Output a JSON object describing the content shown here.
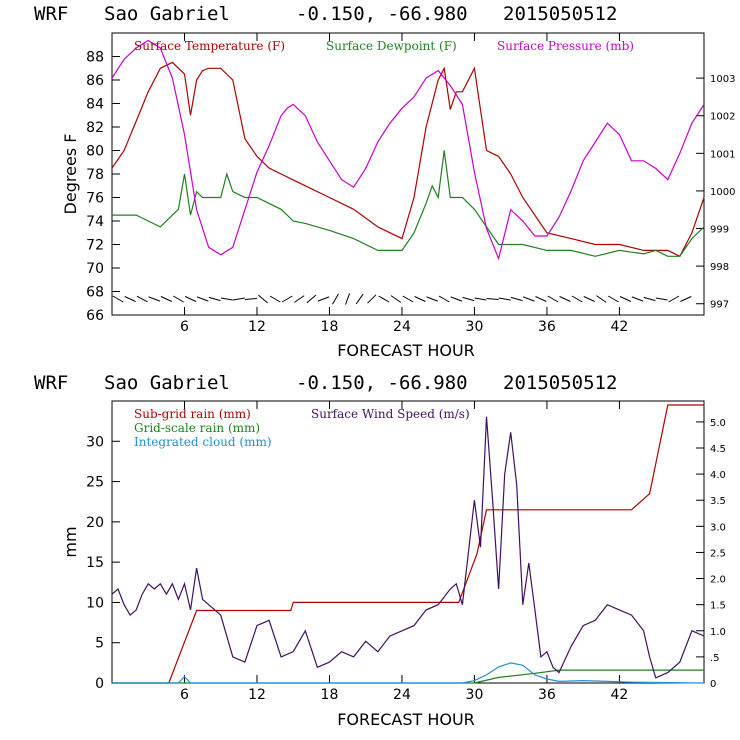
{
  "chart_data": [
    {
      "type": "line",
      "model": "WRF",
      "location": "Sao Gabriel",
      "coords": "-0.150, -66.980",
      "run": "2015050512",
      "xlabel": "FORECAST HOUR",
      "ylabel": "Degrees F",
      "xlim": [
        0,
        49
      ],
      "ylim": [
        66,
        90
      ],
      "y2lim": [
        996.7,
        1004.2
      ],
      "xticks": [
        6,
        12,
        18,
        24,
        30,
        36,
        42
      ],
      "yticks": [
        66,
        68,
        70,
        72,
        74,
        76,
        78,
        80,
        82,
        84,
        86,
        88
      ],
      "y2ticks": [
        997,
        998,
        999,
        1000,
        1001,
        1002,
        1003
      ],
      "legend": [
        "Surface Temperature (F)",
        "Surface Dewpoint (F)",
        "Surface Pressure (mb)"
      ],
      "series": [
        {
          "name": "Surface Temperature (F)",
          "color": "#b00000",
          "axis": "left",
          "x": [
            0,
            1,
            2,
            3,
            4,
            5,
            6,
            6.5,
            7,
            7.5,
            8,
            9,
            10,
            11,
            12,
            13,
            14,
            15,
            16,
            18,
            20,
            22,
            24,
            25,
            26,
            27,
            27.5,
            28,
            28.5,
            29,
            30,
            31,
            32,
            33,
            34,
            36,
            38,
            40,
            42,
            44,
            45,
            46,
            47,
            48,
            49
          ],
          "y": [
            78.5,
            80,
            82.5,
            85,
            87,
            87.5,
            86.5,
            83,
            86,
            86.8,
            87,
            87,
            86,
            81,
            79.5,
            78.5,
            78,
            77.5,
            77,
            76,
            75,
            73.5,
            72.5,
            76,
            82,
            86,
            87,
            83.5,
            85,
            85,
            87,
            80,
            79.5,
            78,
            76,
            73,
            72.5,
            72,
            72,
            71.5,
            71.5,
            71.5,
            71,
            73,
            76
          ]
        },
        {
          "name": "Surface Dewpoint (F)",
          "color": "#208020",
          "axis": "left",
          "x": [
            0,
            2,
            3,
            4,
            5,
            5.5,
            6,
            6.5,
            7,
            7.5,
            8,
            9,
            9.5,
            10,
            11,
            12,
            13,
            14,
            15,
            16,
            18,
            20,
            22,
            24,
            25,
            26,
            26.5,
            27,
            27.5,
            28,
            29,
            30,
            31,
            32,
            33,
            34,
            36,
            38,
            40,
            42,
            44,
            45,
            46,
            47,
            48,
            49
          ],
          "y": [
            74.5,
            74.5,
            74,
            73.5,
            74.5,
            75,
            78,
            74.5,
            76.5,
            76,
            76,
            76,
            78,
            76.5,
            76,
            76,
            75.5,
            75,
            74,
            73.8,
            73.2,
            72.5,
            71.5,
            71.5,
            73,
            75.5,
            77,
            76,
            80,
            76,
            76,
            75,
            73.5,
            72,
            72,
            72,
            71.5,
            71.5,
            71,
            71.5,
            71.2,
            71.5,
            71,
            71,
            72.5,
            73.5
          ]
        },
        {
          "name": "Surface Pressure (mb)",
          "color": "#cc00cc",
          "axis": "right",
          "x": [
            0,
            1,
            2,
            3,
            4,
            5,
            6,
            7,
            8,
            9,
            10,
            11,
            12,
            13,
            14,
            14.5,
            15,
            16,
            17,
            18,
            19,
            20,
            21,
            22,
            23,
            24,
            25,
            26,
            27,
            28,
            29,
            30,
            31,
            32,
            33,
            34,
            35,
            36,
            37,
            38,
            39,
            40,
            41,
            42,
            43,
            44,
            45,
            46,
            47,
            48,
            49
          ],
          "y": [
            1003,
            1003.5,
            1003.8,
            1004,
            1003.8,
            1003,
            1001.5,
            999.5,
            998.5,
            998.3,
            998.5,
            999.5,
            1000.5,
            1001.2,
            1002,
            1002.2,
            1002.3,
            1002,
            1001.3,
            1000.8,
            1000.3,
            1000.1,
            1000.6,
            1001.3,
            1001.8,
            1002.2,
            1002.5,
            1003,
            1003.2,
            1002.8,
            1002.3,
            1000.5,
            999,
            998.2,
            999.5,
            999.2,
            998.8,
            998.8,
            999.3,
            1000,
            1000.8,
            1001.3,
            1001.8,
            1001.5,
            1000.8,
            1000.8,
            1000.6,
            1000.3,
            1001,
            1001.8,
            1002.3
          ]
        }
      ]
    },
    {
      "type": "line",
      "model": "WRF",
      "location": "Sao Gabriel",
      "coords": "-0.150, -66.980",
      "run": "2015050512",
      "xlabel": "FORECAST HOUR",
      "ylabel": "mm",
      "xlim": [
        0,
        49
      ],
      "ylim": [
        0,
        35
      ],
      "y2lim": [
        0,
        5.4
      ],
      "xticks": [
        6,
        12,
        18,
        24,
        30,
        36,
        42
      ],
      "yticks": [
        0,
        5,
        10,
        15,
        20,
        25,
        30
      ],
      "y2ticks": [
        "0",
        ".5",
        "1.0",
        "1.5",
        "2.0",
        "2.5",
        "3.0",
        "3.5",
        "4.0",
        "4.5",
        "5.0"
      ],
      "legend": [
        "Sub-grid rain (mm)",
        "Grid-scale rain (mm)",
        "Integrated cloud (mm)",
        "Surface Wind Speed (m/s)"
      ],
      "series": [
        {
          "name": "Sub-grid rain (mm)",
          "color": "#b00000",
          "axis": "left",
          "x": [
            0,
            4.7,
            7,
            14.8,
            15,
            28.7,
            30.2,
            31,
            43,
            44.5,
            46,
            49
          ],
          "y": [
            0,
            0,
            9,
            9,
            10,
            10,
            16,
            21.5,
            21.5,
            23.5,
            34.5,
            34.5
          ]
        },
        {
          "name": "Grid-scale rain (mm)",
          "color": "#208020",
          "axis": "left",
          "x": [
            0,
            30,
            32,
            35,
            37,
            49
          ],
          "y": [
            0,
            0,
            0.7,
            1.2,
            1.6,
            1.6
          ]
        },
        {
          "name": "Integrated cloud (mm)",
          "color": "#2090d0",
          "axis": "left",
          "x": [
            0,
            5.5,
            6,
            6.5,
            29,
            30,
            31,
            32,
            33,
            34,
            35,
            36,
            37,
            39,
            41,
            43,
            49
          ],
          "y": [
            0,
            0,
            0.8,
            0,
            0,
            0.3,
            1,
            2,
            2.5,
            2.2,
            1,
            0.5,
            0.2,
            0.3,
            0.2,
            0.1,
            0
          ]
        },
        {
          "name": "Surface Wind Speed (m/s)",
          "color": "#401060",
          "axis": "right",
          "x": [
            0,
            0.5,
            1,
            1.5,
            2,
            2.5,
            3,
            3.5,
            4,
            4.5,
            5,
            5.5,
            6,
            6.5,
            7,
            7.5,
            8,
            9,
            10,
            11,
            12,
            13,
            14,
            15,
            16,
            17,
            18,
            19,
            20,
            21,
            22,
            23,
            24,
            25,
            26,
            27,
            28,
            28.5,
            29,
            29.5,
            30,
            30.5,
            31,
            31.5,
            32,
            32.5,
            33,
            33.5,
            34,
            34.5,
            35,
            35.5,
            36,
            36.5,
            37,
            38,
            39,
            40,
            41,
            42,
            43,
            44,
            44.5,
            45,
            46,
            47,
            48,
            49
          ],
          "y": [
            1.7,
            1.8,
            1.5,
            1.3,
            1.4,
            1.7,
            1.9,
            1.8,
            1.9,
            1.7,
            1.9,
            1.6,
            1.9,
            1.4,
            2.2,
            1.6,
            1.5,
            1.3,
            0.5,
            0.4,
            1.1,
            1.2,
            0.5,
            0.6,
            1.0,
            0.3,
            0.4,
            0.6,
            0.5,
            0.8,
            0.6,
            0.9,
            1.0,
            1.1,
            1.4,
            1.5,
            1.8,
            1.9,
            1.5,
            2.5,
            3.5,
            2.6,
            5.1,
            3.5,
            1.8,
            4.0,
            4.8,
            3.8,
            1.5,
            2.3,
            1.4,
            0.5,
            0.6,
            0.3,
            0.2,
            0.7,
            1.1,
            1.2,
            1.5,
            1.4,
            1.3,
            1.0,
            0.5,
            0.1,
            0.2,
            0.4,
            1.0,
            0.9
          ]
        }
      ]
    }
  ],
  "wind_barbs": {
    "label": "wind barbs",
    "hours": [
      0.5,
      1.5,
      2.5,
      3.5,
      4.5,
      5.5,
      6.5,
      7.5,
      8.5,
      9.5,
      10.5,
      11.5,
      12.5,
      13.5,
      14.5,
      15.5,
      16.5,
      17.5,
      18.5,
      19.5,
      20.5,
      21.5,
      22.5,
      23.5,
      24.5,
      25.5,
      26.5,
      27.5,
      28.5,
      29.5,
      30.5,
      31.5,
      32.5,
      33.5,
      34.5,
      35.5,
      36.5,
      37.5,
      38.5,
      39.5,
      40.5,
      41.5,
      42.5,
      43.5,
      44.5,
      45.5,
      46.5,
      47.5
    ],
    "angles": [
      30,
      25,
      28,
      20,
      25,
      30,
      25,
      20,
      15,
      10,
      -10,
      -5,
      40,
      30,
      -30,
      -35,
      -40,
      -20,
      -60,
      -70,
      -55,
      -45,
      30,
      35,
      30,
      25,
      20,
      30,
      20,
      15,
      10,
      5,
      10,
      15,
      20,
      25,
      30,
      25,
      30,
      25,
      35,
      30,
      25,
      20,
      15,
      10,
      -30,
      -25
    ]
  }
}
